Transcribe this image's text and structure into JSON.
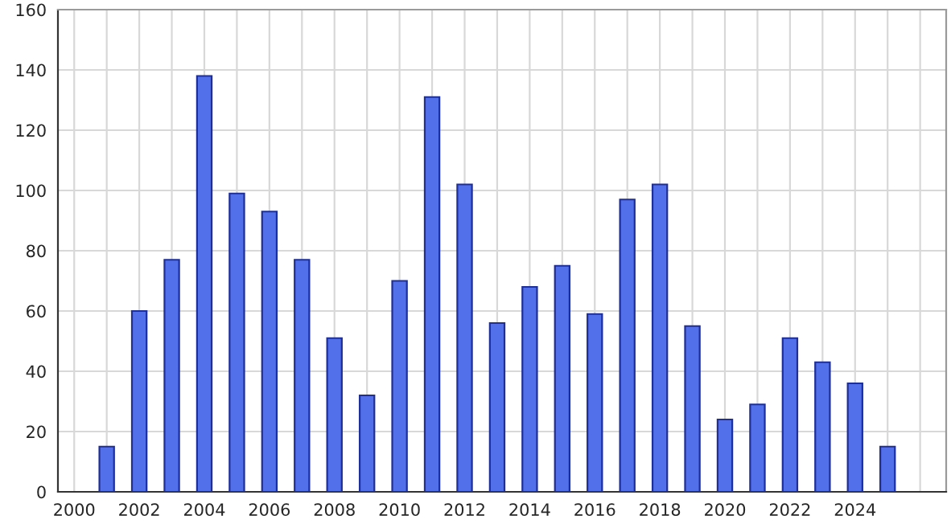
{
  "chart_data": {
    "type": "bar",
    "x": [
      2001,
      2002,
      2003,
      2004,
      2005,
      2006,
      2007,
      2008,
      2009,
      2010,
      2011,
      2012,
      2013,
      2014,
      2015,
      2016,
      2017,
      2018,
      2019,
      2020,
      2021,
      2022,
      2023,
      2024,
      2025
    ],
    "values": [
      15,
      60,
      77,
      138,
      99,
      93,
      77,
      51,
      32,
      70,
      131,
      102,
      56,
      68,
      75,
      59,
      97,
      102,
      55,
      24,
      29,
      51,
      43,
      36,
      15
    ],
    "color": "#5170ea",
    "xlim": [
      1999.5,
      2026.8
    ],
    "xticks": [
      2000,
      {
        "value": 2001,
        "label": null
      },
      2002,
      {
        "value": 2003,
        "label": null
      },
      2004,
      {
        "value": 2005,
        "label": null
      },
      2006,
      {
        "value": 2007,
        "label": null
      },
      2008,
      {
        "value": 2009,
        "label": null
      },
      2010,
      {
        "value": 2011,
        "label": null
      },
      2012,
      {
        "value": 2013,
        "label": null
      },
      2014,
      {
        "value": 2015,
        "label": null
      },
      2016,
      {
        "value": 2017,
        "label": null
      },
      2018,
      {
        "value": 2019,
        "label": null
      },
      2020,
      {
        "value": 2021,
        "label": null
      },
      2022,
      {
        "value": 2023,
        "label": null
      },
      2024,
      {
        "value": 2025,
        "label": null
      },
      {
        "value": 2026,
        "label": null
      }
    ],
    "ylim": [
      0,
      160
    ],
    "yticks": [
      0,
      20,
      40,
      60,
      80,
      100,
      120,
      140,
      160
    ],
    "grid": true
  }
}
